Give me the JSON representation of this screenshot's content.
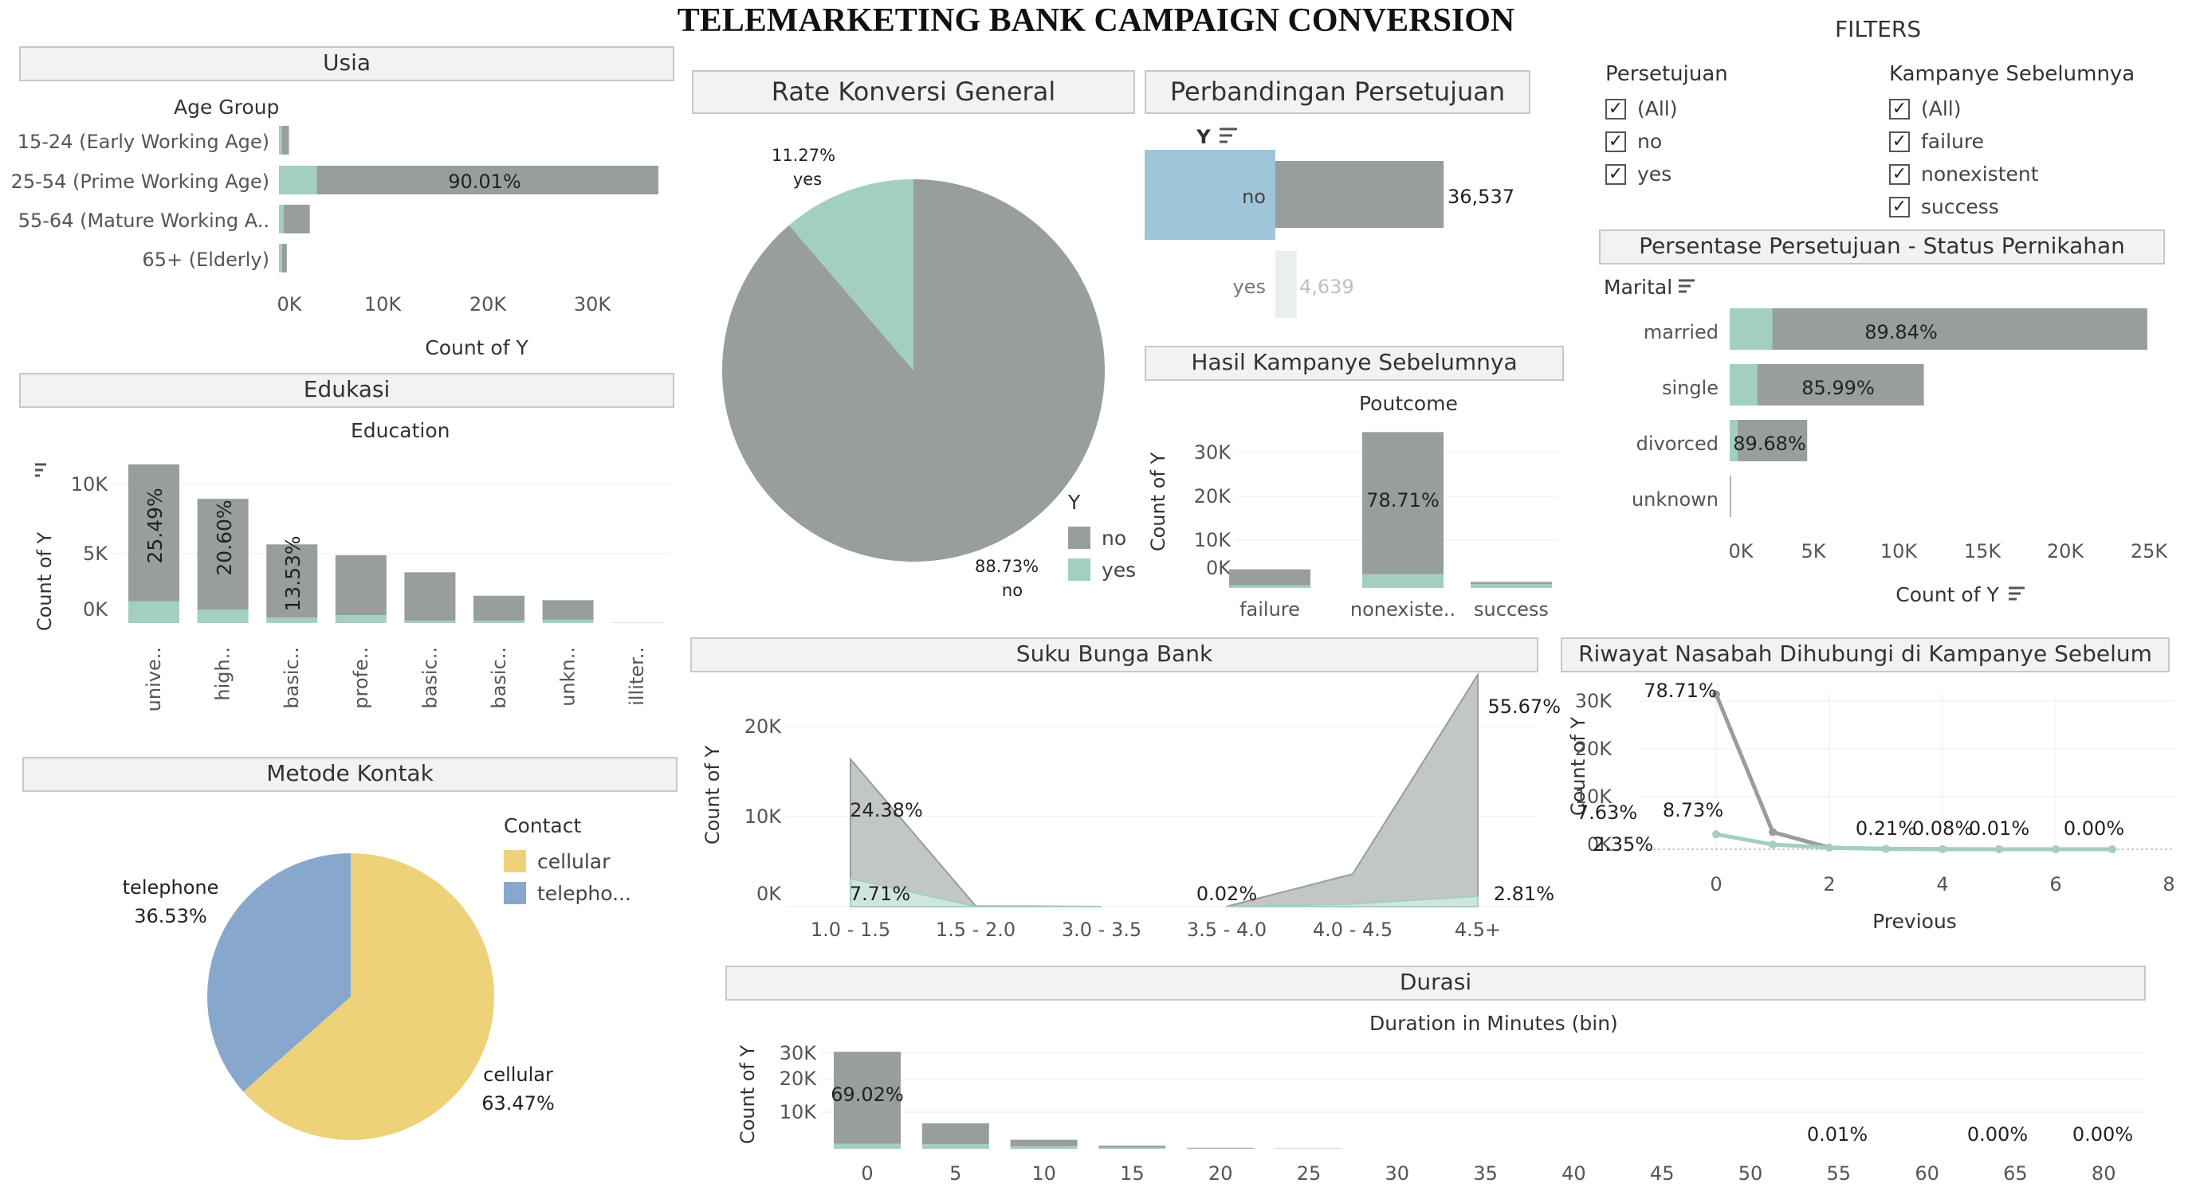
{
  "title": "TELEMARKETING BANK CAMPAIGN CONVERSION",
  "colors": {
    "no": "#989d9e",
    "yes": "#a2cfc0",
    "highlight_blue": "#9fc5d9",
    "cellular": "#edd27a",
    "telephone": "#88a7cc"
  },
  "usia": {
    "header": "Usia",
    "subtitle": "Age Group",
    "xlabel": "Count of Y",
    "ticks": [
      "0K",
      "10K",
      "20K",
      "30K"
    ],
    "categories": [
      "15-24 (Early Working Age)",
      "25-54 (Prime Working Age)",
      "55-64 (Mature Working A..",
      "65+ (Elderly)"
    ],
    "bar_label": "90.01%"
  },
  "edukasi": {
    "header": "Edukasi",
    "subtitle": "Education",
    "ylabel": "Count of Y",
    "ticks": [
      "10K",
      "5K",
      "0K"
    ],
    "categories": [
      "unive..",
      "high..",
      "basic..",
      "profe..",
      "basic..",
      "basic..",
      "unkn..",
      "illiter.."
    ],
    "labels": [
      "25.49%",
      "20.60%",
      "13.53%"
    ]
  },
  "metode": {
    "header": "Metode Kontak",
    "legend_title": "Contact",
    "legend": [
      "cellular",
      "telepho..."
    ],
    "tel_label": "telephone",
    "tel_pct": "36.53%",
    "cel_label": "cellular",
    "cel_pct": "63.47%"
  },
  "rate": {
    "header": "Rate Konversi General",
    "yes_pct": "11.27%",
    "yes_label": "yes",
    "no_pct": "88.73%",
    "no_label": "no",
    "legend_title": "Y",
    "legend": [
      "no",
      "yes"
    ]
  },
  "perbandingan": {
    "header": "Perbandingan Persetujuan",
    "axis": "Y",
    "rows": [
      "no",
      "yes"
    ],
    "values": [
      "36,537",
      "4,639"
    ]
  },
  "hasil": {
    "header": "Hasil Kampanye Sebelumnya",
    "subtitle": "Poutcome",
    "ylabel": "Count of Y",
    "ticks": [
      "30K",
      "20K",
      "10K",
      "0K"
    ],
    "categories": [
      "failure",
      "nonexiste..",
      "success"
    ],
    "label": "78.71%"
  },
  "filters": {
    "title": "FILTERS",
    "persetujuan": {
      "title": "Persetujuan",
      "items": [
        "(All)",
        "no",
        "yes"
      ]
    },
    "kampanye": {
      "title": "Kampanye Sebelumnya",
      "items": [
        "(All)",
        "failure",
        "nonexistent",
        "success"
      ]
    },
    "check": "✓"
  },
  "marital": {
    "header": "Persentase Persetujuan - Status Pernikahan",
    "subtitle": "Marital",
    "xlabel": "Count of Y",
    "ticks": [
      "0K",
      "5K",
      "10K",
      "15K",
      "20K",
      "25K"
    ],
    "categories": [
      "married",
      "single",
      "divorced",
      "unknown"
    ],
    "labels": [
      "89.84%",
      "85.99%",
      "89.68%"
    ]
  },
  "suku": {
    "header": "Suku Bunga Bank",
    "ylabel": "Count of Y",
    "ticks": [
      "20K",
      "10K",
      "0K"
    ],
    "categories": [
      "1.0 - 1.5",
      "1.5 - 2.0",
      "3.0 - 3.5",
      "3.5 - 4.0",
      "4.0 - 4.5",
      "4.5+"
    ],
    "labels": [
      "24.38%",
      "7.71%",
      "0.02%",
      "55.67%",
      "2.81%"
    ]
  },
  "riwayat": {
    "header": "Riwayat Nasabah Dihubungi di Kampanye Sebelum",
    "ylabel": "Count of Y",
    "xlabel": "Previous",
    "yticks": [
      "30K",
      "20K",
      "10K",
      "0K"
    ],
    "xticks": [
      "0",
      "2",
      "4",
      "6",
      "8"
    ],
    "labels": [
      "78.71%",
      "7.63%",
      "2.35%",
      "8.73%",
      "0.21%",
      "0.08%",
      "0.01%",
      "0.00%"
    ]
  },
  "durasi": {
    "header": "Durasi",
    "subtitle": "Duration in Minutes (bin)",
    "ylabel": "Count of Y",
    "yticks": [
      "30K",
      "20K",
      "10K"
    ],
    "categories": [
      "0",
      "5",
      "10",
      "15",
      "20",
      "25",
      "30",
      "35",
      "40",
      "45",
      "50",
      "55",
      "60",
      "65",
      "80"
    ],
    "labels": [
      "69.02%",
      "0.01%",
      "0.00%",
      "0.00%"
    ]
  },
  "chart_data": [
    {
      "type": "bar",
      "title": "Usia",
      "orientation": "horizontal",
      "xlabel": "Count of Y",
      "ylabel": "Age Group",
      "categories": [
        "15-24 (Early Working Age)",
        "25-54 (Prime Working Age)",
        "55-64 (Mature Working A..",
        "65+ (Elderly)"
      ],
      "xlim": [
        0,
        35000
      ],
      "series": [
        {
          "name": "no",
          "values": [
            700,
            32650,
            2500,
            450
          ]
        },
        {
          "name": "yes",
          "values": [
            250,
            3600,
            450,
            300
          ]
        }
      ]
    },
    {
      "type": "bar",
      "title": "Edukasi",
      "xlabel": "Education",
      "ylabel": "Count of Y",
      "categories": [
        "unive..",
        "high..",
        "basic..",
        "profe..",
        "basic..",
        "basic..",
        "unkn..",
        "illiter.."
      ],
      "series": [
        {
          "name": "no",
          "values": [
            10500,
            8500,
            5600,
            4600,
            3700,
            1900,
            1500,
            15
          ]
        },
        {
          "name": "yes",
          "values": [
            1670,
            1030,
            430,
            600,
            190,
            190,
            250,
            4
          ]
        }
      ]
    },
    {
      "type": "pie",
      "title": "Metode Kontak",
      "legend_title": "Contact",
      "slices": [
        {
          "name": "cellular",
          "value": 63.47
        },
        {
          "name": "telephone",
          "value": 36.53
        }
      ]
    },
    {
      "type": "pie",
      "title": "Rate Konversi General",
      "legend_title": "Y",
      "slices": [
        {
          "name": "no",
          "value": 88.73
        },
        {
          "name": "yes",
          "value": 11.27
        }
      ]
    },
    {
      "type": "bar",
      "title": "Perbandingan Persetujuan",
      "orientation": "horizontal",
      "ylabel": "Y",
      "categories": [
        "no",
        "yes"
      ],
      "values": [
        36537,
        4639
      ]
    },
    {
      "type": "bar",
      "title": "Hasil Kampanye Sebelumnya",
      "xlabel": "Poutcome",
      "ylabel": "Count of Y",
      "categories": [
        "failure",
        "nonexiste..",
        "success"
      ],
      "series": [
        {
          "name": "no",
          "values": [
            3650,
            32420,
            480
          ]
        },
        {
          "name": "yes",
          "values": [
            600,
            3150,
            900
          ]
        }
      ]
    },
    {
      "type": "bar",
      "title": "Persentase Persetujuan - Status Pernikahan",
      "orientation": "horizontal",
      "xlabel": "Count of Y",
      "ylabel": "Marital",
      "xlim": [
        0,
        25000
      ],
      "categories": [
        "married",
        "single",
        "divorced",
        "unknown"
      ],
      "series": [
        {
          "name": "no",
          "values": [
            22400,
            9950,
            4150,
            70
          ]
        },
        {
          "name": "yes",
          "values": [
            2550,
            1650,
            480,
            10
          ]
        }
      ]
    },
    {
      "type": "area",
      "title": "Suku Bunga Bank",
      "ylabel": "Count of Y",
      "categories": [
        "1.0 - 1.5",
        "1.5 - 2.0",
        "3.0 - 3.5",
        "3.5 - 4.0",
        "4.0 - 4.5",
        "4.5+"
      ],
      "series": [
        {
          "name": "no",
          "values": [
            13200,
            50,
            0,
            10,
            3300,
            24500
          ]
        },
        {
          "name": "yes",
          "values": [
            3100,
            20,
            0,
            5,
            300,
            1150
          ]
        }
      ]
    },
    {
      "type": "line",
      "title": "Riwayat Nasabah Dihubungi di Kampanye Sebelum",
      "xlabel": "Previous",
      "ylabel": "Count of Y",
      "x": [
        0,
        1,
        2,
        3,
        4,
        5,
        6,
        7
      ],
      "series": [
        {
          "name": "no",
          "values": [
            32420,
            3600,
            340,
            90,
            30,
            8,
            2,
            1
          ]
        },
        {
          "name": "yes",
          "values": [
            3140,
            970,
            340,
            90,
            30,
            8,
            2,
            1
          ]
        }
      ]
    },
    {
      "type": "bar",
      "title": "Durasi",
      "xlabel": "Duration in Minutes (bin)",
      "ylabel": "Count of Y",
      "categories": [
        "0",
        "5",
        "10",
        "15",
        "20",
        "25",
        "30",
        "35",
        "40",
        "45",
        "50",
        "55",
        "60",
        "65",
        "80"
      ],
      "series": [
        {
          "name": "no",
          "values": [
            32500,
            7300,
            2300,
            700,
            200,
            90,
            40,
            20,
            10,
            5,
            3,
            2,
            1,
            1,
            1
          ]
        },
        {
          "name": "yes",
          "values": [
            1800,
            1700,
            900,
            400,
            150,
            60,
            20,
            10,
            5,
            2,
            1,
            1,
            0,
            0,
            0
          ]
        }
      ]
    }
  ]
}
